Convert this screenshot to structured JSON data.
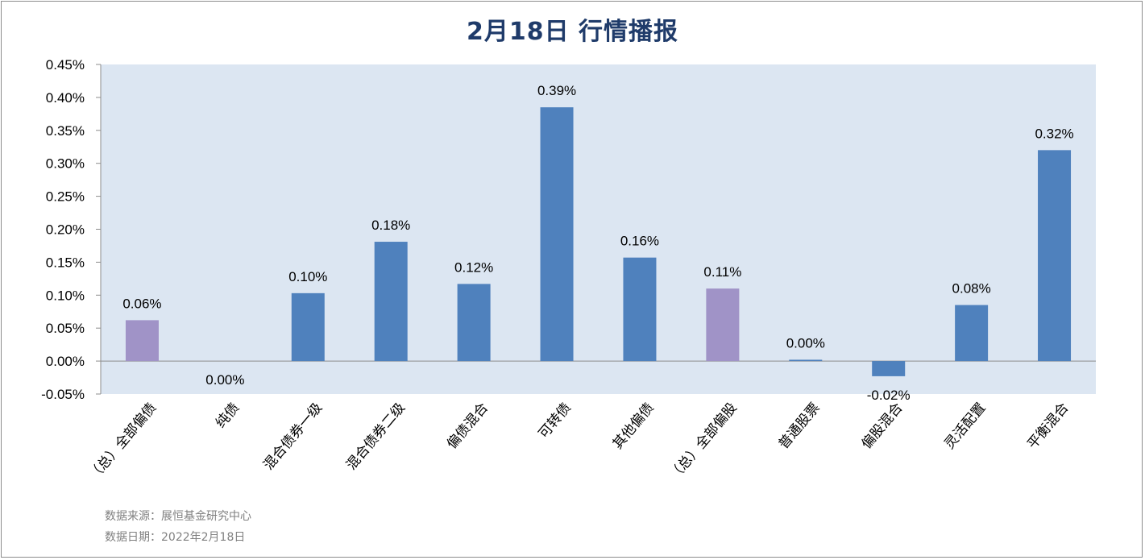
{
  "chart_data": {
    "type": "bar",
    "title": "2月18日  行情播报",
    "categories": [
      "（总）全部偏债",
      "纯债",
      "混合债券一级",
      "混合债券二级",
      "偏债混合",
      "可转债",
      "其他偏债",
      "（总）全部偏股",
      "普通股票",
      "偏股混合",
      "灵活配置",
      "平衡混合"
    ],
    "values": [
      0.062,
      0.0,
      0.103,
      0.181,
      0.117,
      0.385,
      0.157,
      0.11,
      0.002,
      -0.023,
      0.085,
      0.32
    ],
    "data_labels": [
      "0.06%",
      "0.00%",
      "0.10%",
      "0.18%",
      "0.12%",
      "0.39%",
      "0.16%",
      "0.11%",
      "0.00%",
      "-0.02%",
      "0.08%",
      "0.32%"
    ],
    "ylim": [
      -0.05,
      0.45
    ],
    "y_ticks": [
      -0.05,
      0.0,
      0.05,
      0.1,
      0.15,
      0.2,
      0.25,
      0.3,
      0.35,
      0.4,
      0.45
    ],
    "y_tick_labels": [
      "-0.05%",
      "0.00%",
      "0.05%",
      "0.10%",
      "0.15%",
      "0.20%",
      "0.25%",
      "0.30%",
      "0.35%",
      "0.40%",
      "0.45%"
    ],
    "xlabel": "",
    "ylabel": "",
    "grid": false,
    "legend": "none",
    "colors": {
      "bar": "#4f81bd",
      "summary_bar": "#a093c7",
      "plot_background": "#dce6f2",
      "title": "#1f3b6a"
    },
    "summary_indices": [
      0,
      7
    ]
  },
  "footer": {
    "source": "数据来源：展恒基金研究中心",
    "date": "数据日期：2022年2月18日"
  }
}
